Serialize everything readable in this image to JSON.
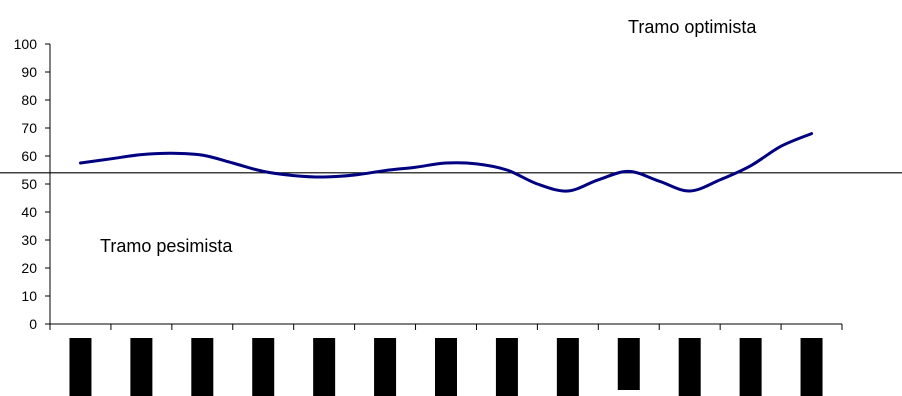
{
  "chart_data": {
    "type": "line",
    "title": "",
    "xlabel": "",
    "ylabel": "",
    "ylim": [
      0,
      100
    ],
    "yticks": [
      0,
      10,
      20,
      30,
      40,
      50,
      60,
      70,
      80,
      90,
      100
    ],
    "x_category_count": 13,
    "x_tick_labels_redacted": true,
    "grid": false,
    "legend": "none",
    "series_color": "#000080",
    "reference_line_color": "#000000",
    "reference_line_value": 54,
    "annotations": {
      "above": "Tramo optimista",
      "below": "Tramo pesimista"
    },
    "series": [
      {
        "x": [
          0,
          0.5,
          1,
          1.5,
          2,
          2.5,
          3,
          3.5,
          4,
          4.5,
          5,
          5.5,
          6,
          6.5,
          7,
          7.5,
          8,
          8.5,
          9,
          9.5,
          10,
          10.5,
          11,
          11.5,
          12
        ],
        "values": [
          57.5,
          59,
          60.5,
          61,
          60.3,
          57.5,
          54.5,
          53,
          52.5,
          53.2,
          54.8,
          56,
          57.5,
          57.2,
          55,
          50,
          47.5,
          51.5,
          54.5,
          51,
          47.5,
          51.5,
          56.5,
          63.5,
          68
        ]
      }
    ]
  }
}
